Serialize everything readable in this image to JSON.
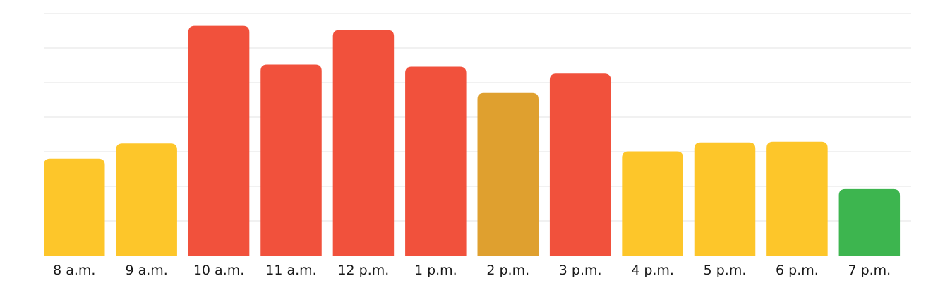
{
  "chart_data": {
    "type": "bar",
    "title": "",
    "xlabel": "",
    "ylabel": "",
    "categories": [
      "8 a.m.",
      "9 a.m.",
      "10 a.m.",
      "11 a.m.",
      "12 p.m.",
      "1 p.m.",
      "2 p.m.",
      "3 p.m.",
      "4 p.m.",
      "5 p.m.",
      "6 p.m.",
      "7 p.m."
    ],
    "values": [
      2.8,
      3.24,
      6.64,
      5.52,
      6.52,
      5.46,
      4.7,
      5.26,
      3.01,
      3.27,
      3.29,
      1.92
    ],
    "bar_colors": [
      "#FDC62A",
      "#FDC62A",
      "#F1513C",
      "#F1513C",
      "#F1513C",
      "#F1513C",
      "#DFA02F",
      "#F1513C",
      "#FDC62A",
      "#FDC62A",
      "#FDC62A",
      "#3DB54F"
    ],
    "ylim": [
      0,
      7
    ],
    "gridlines": [
      1,
      2,
      3,
      4,
      5,
      6,
      7
    ],
    "grid": true,
    "legend": "none",
    "colors": {
      "grid": "#E3E3E3",
      "label": "#1A1A1A"
    }
  }
}
